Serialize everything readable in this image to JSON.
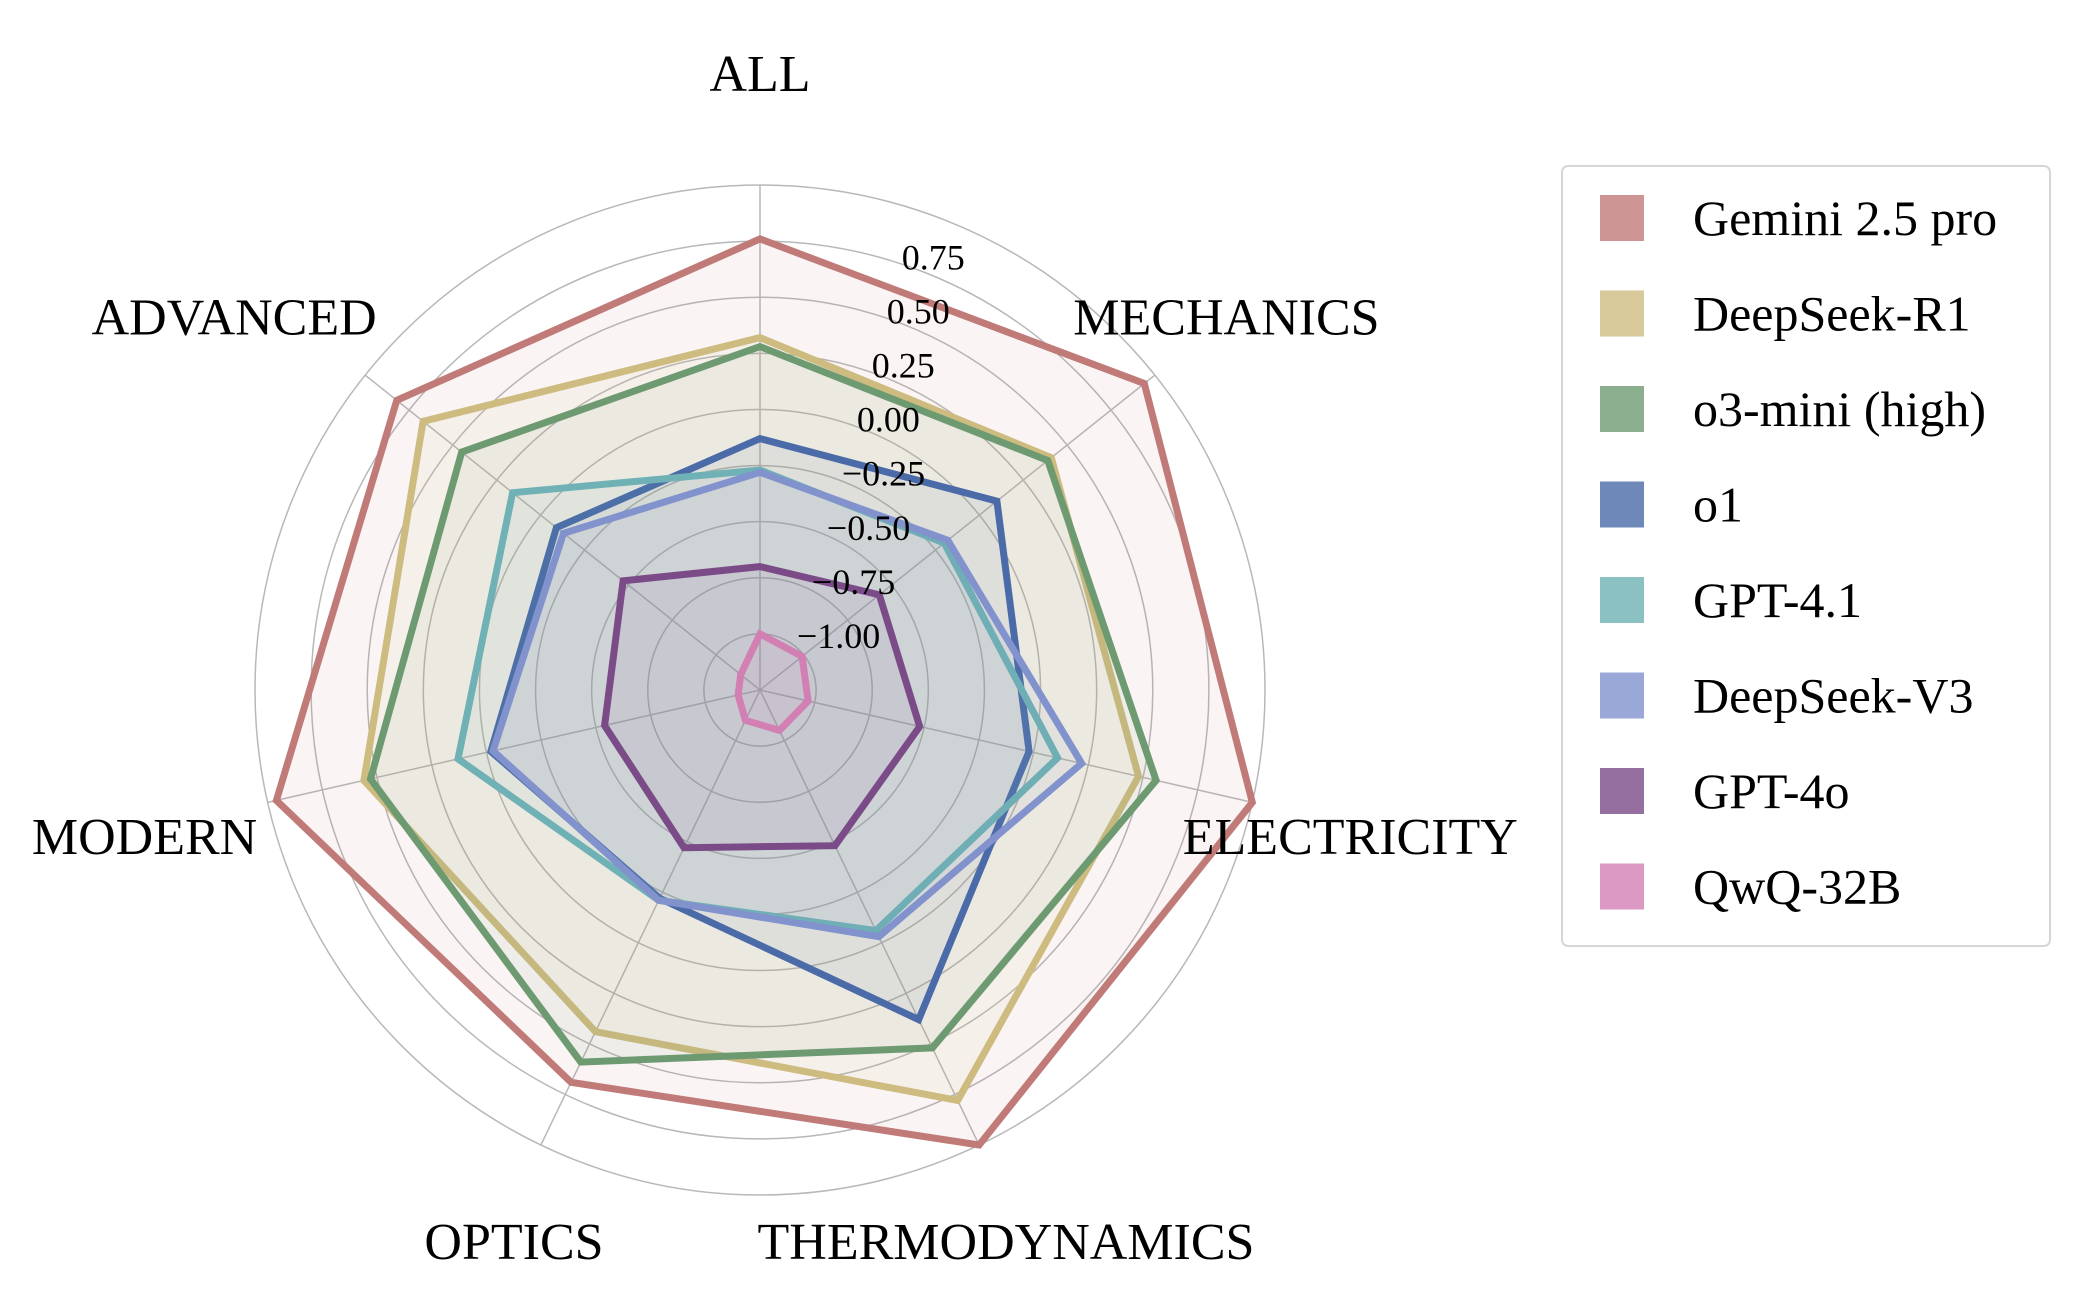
{
  "chart_data": {
    "type": "radar",
    "axes": [
      "ALL",
      "MECHANICS",
      "ELECTRICITY",
      "THERMODYNAMICS",
      "OPTICS",
      "MODERN",
      "ADVANCED"
    ],
    "rlim": [
      -1.25,
      1.0
    ],
    "rticks": [
      -1.0,
      -0.75,
      -0.5,
      -0.25,
      0.0,
      0.25,
      0.5,
      0.75
    ],
    "rtick_labels": [
      "−1.00",
      "−0.75",
      "−0.50",
      "−0.25",
      "0.00",
      "0.25",
      "0.50",
      "0.75"
    ],
    "grid": true,
    "legend_position": "right",
    "series": [
      {
        "name": "Gemini 2.5 pro",
        "color": "#c07a78",
        "values": [
          0.76,
          0.94,
          1.0,
          1.0,
          0.69,
          0.96,
          0.82
        ]
      },
      {
        "name": "DeepSeek-R1",
        "color": "#cdbb80",
        "values": [
          0.32,
          0.41,
          0.48,
          0.78,
          0.44,
          0.56,
          0.67
        ]
      },
      {
        "name": "o3-mini (high)",
        "color": "#6e9a72",
        "values": [
          0.28,
          0.39,
          0.56,
          0.52,
          0.59,
          0.53,
          0.45
        ]
      },
      {
        "name": "o1",
        "color": "#4a6aa8",
        "values": [
          -0.13,
          0.1,
          -0.02,
          0.38,
          -0.22,
          -0.02,
          -0.09
        ]
      },
      {
        "name": "GPT-4.1",
        "color": "#6fb1b5",
        "values": [
          -0.27,
          -0.2,
          0.11,
          -0.06,
          -0.21,
          0.13,
          0.16
        ]
      },
      {
        "name": "DeepSeek-V3",
        "color": "#8192cd",
        "values": [
          -0.28,
          -0.18,
          0.22,
          -0.03,
          -0.21,
          -0.03,
          -0.13
        ]
      },
      {
        "name": "GPT-4o",
        "color": "#7b4b88",
        "values": [
          -0.7,
          -0.57,
          -0.52,
          -0.48,
          -0.47,
          -0.54,
          -0.47
        ]
      },
      {
        "name": "QwQ-32B",
        "color": "#d280b4",
        "values": [
          -1.0,
          -1.01,
          -1.03,
          -1.05,
          -1.1,
          -1.15,
          -1.14
        ]
      }
    ]
  }
}
